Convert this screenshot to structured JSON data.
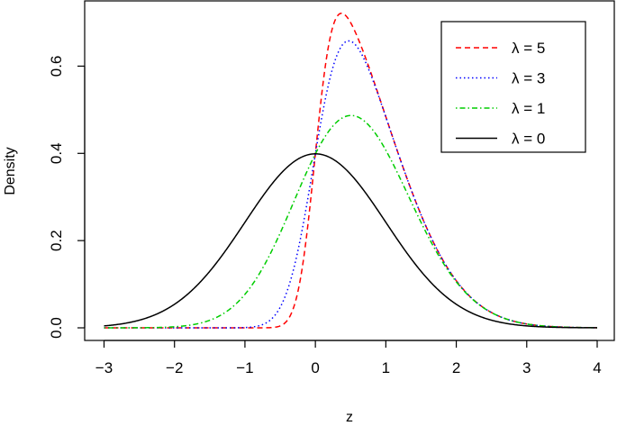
{
  "chart_data": {
    "type": "line",
    "title": "",
    "xlabel": "z",
    "ylabel": "Density",
    "xlim": [
      -3,
      4
    ],
    "ylim": [
      0,
      0.7
    ],
    "x_ticks": [
      -3,
      -2,
      -1,
      0,
      1,
      2,
      3,
      4
    ],
    "x_tick_labels": [
      "−3",
      "−2",
      "−1",
      "0",
      "1",
      "2",
      "3",
      "4"
    ],
    "y_ticks": [
      0,
      0.2,
      0.4,
      0.6
    ],
    "y_tick_labels": [
      "0.0",
      "0.2",
      "0.4",
      "0.6"
    ],
    "grid": false,
    "legend_position": "top-right",
    "distribution": "skew-normal density",
    "series": [
      {
        "name": "λ = 5",
        "lambda": 5,
        "color": "#ff0000",
        "dash": "dashed"
      },
      {
        "name": "λ = 3",
        "lambda": 3,
        "color": "#0000ff",
        "dash": "dotted"
      },
      {
        "name": "λ = 1",
        "lambda": 1,
        "color": "#00cd00",
        "dash": "dotdash"
      },
      {
        "name": "λ = 0",
        "lambda": 0,
        "color": "#000000",
        "dash": "solid"
      }
    ]
  }
}
